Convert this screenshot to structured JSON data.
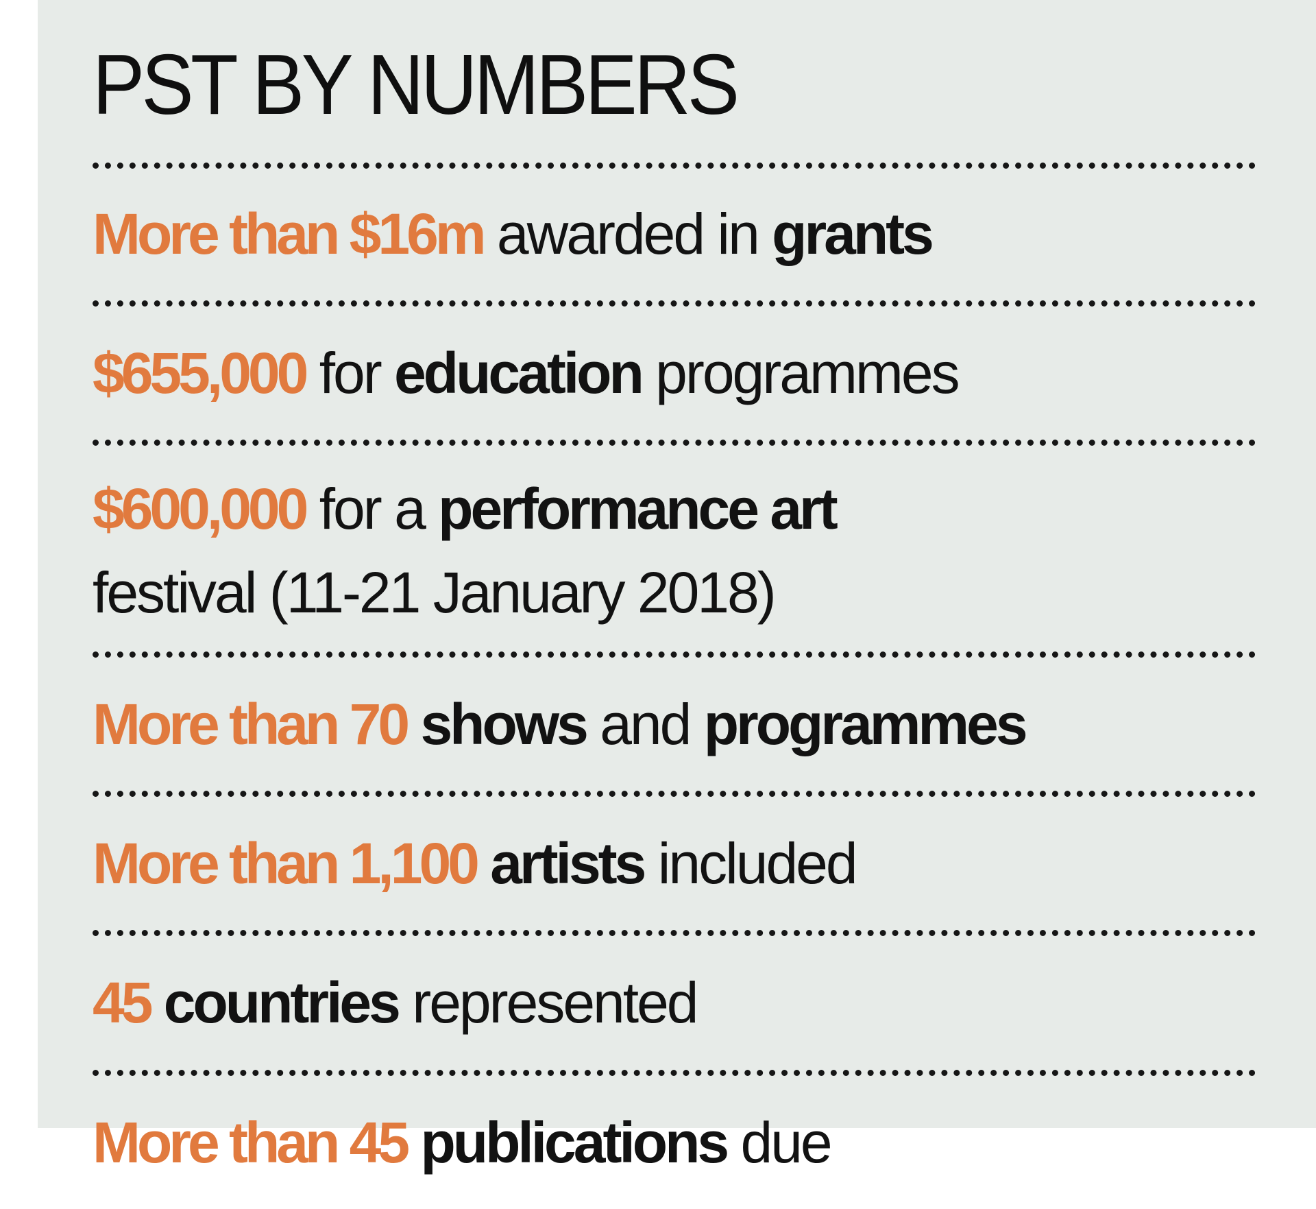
{
  "title": "PST BY NUMBERS",
  "accent_color": "#e17a3e",
  "background_color": "#e7ebe8",
  "facts": [
    {
      "figure": "More than $16m",
      "mid": "awarded in",
      "keyword": "grants"
    },
    {
      "figure": "$655,000",
      "mid": "for",
      "keyword": "education",
      "tail": "programmes"
    },
    {
      "figure": "$600,000",
      "mid": "for a",
      "keyword": "performance art",
      "tail": "festival (11-21 January 2018)"
    },
    {
      "figure": "More than 70",
      "keyword": "shows",
      "mid": "and",
      "keyword2": "programmes"
    },
    {
      "figure": "More than 1,100",
      "keyword": "artists",
      "tail": "included"
    },
    {
      "figure": "45",
      "keyword": "countries",
      "tail": "represented"
    },
    {
      "figure": "More than 45",
      "keyword": "publications",
      "tail": "due"
    }
  ]
}
